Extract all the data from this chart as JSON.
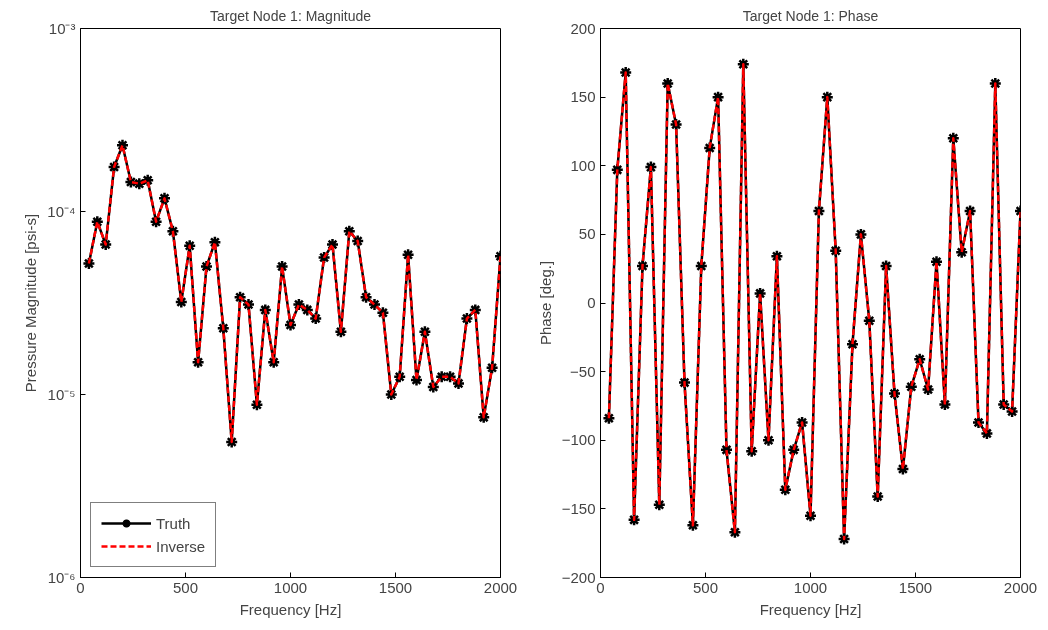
{
  "chart_data": [
    {
      "type": "line",
      "title": "Target Node 1: Magnitude",
      "xlabel": "Frequency [Hz]",
      "ylabel": "Pressure Magnitude [psi-s]",
      "log": "y",
      "grid": false,
      "legend": "bottom left",
      "x": [
        40,
        80,
        120,
        160,
        200,
        240,
        280,
        320,
        360,
        400,
        440,
        480,
        520,
        560,
        600,
        640,
        680,
        720,
        760,
        800,
        840,
        880,
        920,
        960,
        1000,
        1040,
        1080,
        1120,
        1160,
        1200,
        1240,
        1280,
        1320,
        1360,
        1400,
        1440,
        1480,
        1520,
        1560,
        1600,
        1640,
        1680,
        1720,
        1760,
        1800,
        1840,
        1880,
        1920,
        1960,
        2000
      ],
      "xlim": [
        0,
        2000
      ],
      "xticks": [
        0,
        500,
        1000,
        1500,
        2000
      ],
      "ylim": [
        1e-06,
        0.001
      ],
      "yticks": [
        {
          "value": 1e-06,
          "label": "10⁻⁶"
        },
        {
          "value": 1e-05,
          "label": "10⁻⁵"
        },
        {
          "value": 0.0001,
          "label": "10⁻⁴"
        },
        {
          "value": 0.001,
          "label": "10⁻³"
        }
      ],
      "series": [
        {
          "name": "Truth",
          "color": "#000000",
          "line_style": "solid",
          "marker": "cross",
          "values": [
            5.2e-05,
            8.8e-05,
            6.6e-05,
            0.000175,
            0.00023,
            0.000145,
            0.000142,
            0.000148,
            8.8e-05,
            0.000118,
            7.8e-05,
            3.2e-05,
            6.5e-05,
            1.5e-05,
            5e-05,
            6.8e-05,
            2.3e-05,
            5.5e-06,
            3.4e-05,
            3.1e-05,
            8.8e-06,
            2.9e-05,
            1.5e-05,
            5e-05,
            2.4e-05,
            3.1e-05,
            2.9e-05,
            2.6e-05,
            5.6e-05,
            6.6e-05,
            2.2e-05,
            7.8e-05,
            6.9e-05,
            3.4e-05,
            3.1e-05,
            2.8e-05,
            1e-05,
            1.25e-05,
            5.8e-05,
            1.2e-05,
            2.2e-05,
            1.1e-05,
            1.25e-05,
            1.25e-05,
            1.15e-05,
            2.6e-05,
            2.9e-05,
            7.5e-06,
            1.4e-05,
            5.7e-05
          ]
        },
        {
          "name": "Inverse",
          "color": "#ff0000",
          "line_style": "dashed",
          "marker": "none",
          "values": [
            5.2e-05,
            8.8e-05,
            6.6e-05,
            0.000175,
            0.00023,
            0.000145,
            0.000142,
            0.000148,
            8.8e-05,
            0.000118,
            7.8e-05,
            3.2e-05,
            6.5e-05,
            1.5e-05,
            5e-05,
            6.8e-05,
            2.3e-05,
            5.5e-06,
            3.4e-05,
            3.1e-05,
            8.8e-06,
            2.9e-05,
            1.5e-05,
            5e-05,
            2.4e-05,
            3.1e-05,
            2.9e-05,
            2.6e-05,
            5.6e-05,
            6.6e-05,
            2.2e-05,
            7.8e-05,
            6.9e-05,
            3.4e-05,
            3.1e-05,
            2.8e-05,
            1e-05,
            1.25e-05,
            5.8e-05,
            1.2e-05,
            2.2e-05,
            1.1e-05,
            1.25e-05,
            1.25e-05,
            1.15e-05,
            2.6e-05,
            2.9e-05,
            7.5e-06,
            1.4e-05,
            5.7e-05
          ]
        }
      ]
    },
    {
      "type": "line",
      "title": "Target Node 1: Phase",
      "xlabel": "Frequency [Hz]",
      "ylabel": "Phase [deg.]",
      "grid": false,
      "legend": false,
      "x": [
        40,
        80,
        120,
        160,
        200,
        240,
        280,
        320,
        360,
        400,
        440,
        480,
        520,
        560,
        600,
        640,
        680,
        720,
        760,
        800,
        840,
        880,
        920,
        960,
        1000,
        1040,
        1080,
        1120,
        1160,
        1200,
        1240,
        1280,
        1320,
        1360,
        1400,
        1440,
        1480,
        1520,
        1560,
        1600,
        1640,
        1680,
        1720,
        1760,
        1800,
        1840,
        1880,
        1920,
        1960,
        2000
      ],
      "xlim": [
        0,
        2000
      ],
      "xticks": [
        0,
        500,
        1000,
        1500,
        2000
      ],
      "ylim": [
        -200,
        200
      ],
      "yticks": [
        -200,
        -150,
        -100,
        -50,
        0,
        50,
        100,
        150,
        200
      ],
      "series": [
        {
          "color": "#000000",
          "line_style": "solid",
          "marker": "cross",
          "values": [
            -84,
            97,
            168,
            -158,
            27,
            99,
            -147,
            160,
            130,
            -58,
            -162,
            27,
            113,
            150,
            -107,
            -167,
            174,
            -108,
            7,
            -100,
            34,
            -136,
            -107,
            -87,
            -155,
            67,
            150,
            38,
            -172,
            -30,
            50,
            -13,
            -141,
            27,
            -66,
            -121,
            -61,
            -41,
            -63,
            30,
            -74,
            120,
            37,
            67,
            -87,
            -95,
            160,
            -74,
            -79,
            67
          ]
        },
        {
          "color": "#ff0000",
          "line_style": "dashed",
          "marker": "none",
          "values": [
            -84,
            97,
            168,
            -158,
            27,
            99,
            -147,
            160,
            130,
            -58,
            -162,
            27,
            113,
            150,
            -107,
            -167,
            174,
            -108,
            7,
            -100,
            34,
            -136,
            -107,
            -87,
            -155,
            67,
            150,
            38,
            -172,
            -30,
            50,
            -13,
            -141,
            27,
            -66,
            -121,
            -61,
            -41,
            -63,
            30,
            -74,
            120,
            37,
            67,
            -87,
            -95,
            160,
            -74,
            -79,
            67
          ]
        }
      ]
    }
  ]
}
